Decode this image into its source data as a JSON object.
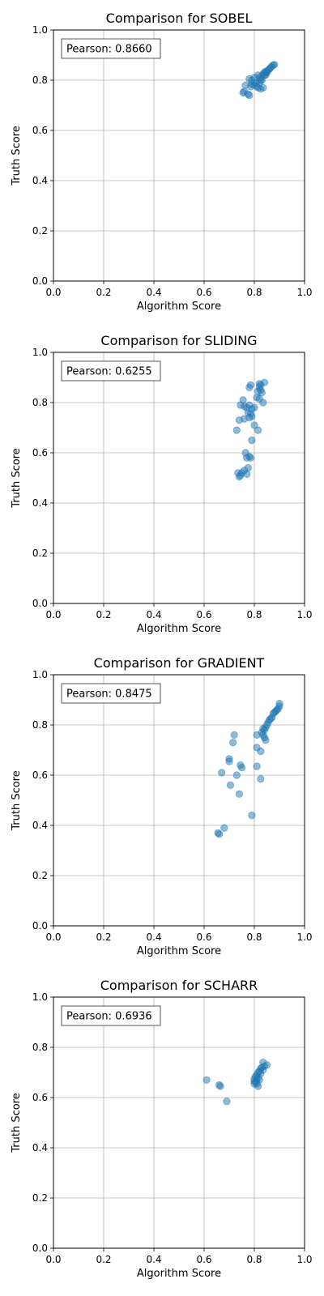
{
  "chart_data": [
    {
      "type": "scatter",
      "title": "Comparison for SOBEL",
      "xlabel": "Algorithm Score",
      "ylabel": "Truth Score",
      "xlim": [
        0,
        1
      ],
      "ylim": [
        0,
        1
      ],
      "xticks": [
        "0.0",
        "0.2",
        "0.4",
        "0.6",
        "0.8",
        "1.0"
      ],
      "yticks": [
        "0.0",
        "0.2",
        "0.4",
        "0.6",
        "0.8",
        "1.0"
      ],
      "grid": true,
      "annotation": "Pearson: 0.8660",
      "annotation_position": "top-left",
      "marker_color": "#1f77b4",
      "points": [
        [
          0.76,
          0.755
        ],
        [
          0.755,
          0.75
        ],
        [
          0.775,
          0.745
        ],
        [
          0.78,
          0.74
        ],
        [
          0.765,
          0.78
        ],
        [
          0.785,
          0.775
        ],
        [
          0.79,
          0.785
        ],
        [
          0.8,
          0.78
        ],
        [
          0.81,
          0.775
        ],
        [
          0.805,
          0.79
        ],
        [
          0.78,
          0.805
        ],
        [
          0.79,
          0.8
        ],
        [
          0.8,
          0.81
        ],
        [
          0.815,
          0.82
        ],
        [
          0.82,
          0.81
        ],
        [
          0.825,
          0.8
        ],
        [
          0.83,
          0.815
        ],
        [
          0.835,
          0.825
        ],
        [
          0.84,
          0.83
        ],
        [
          0.845,
          0.82
        ],
        [
          0.85,
          0.835
        ],
        [
          0.855,
          0.84
        ],
        [
          0.86,
          0.845
        ],
        [
          0.865,
          0.85
        ],
        [
          0.87,
          0.855
        ],
        [
          0.875,
          0.86
        ],
        [
          0.88,
          0.862
        ],
        [
          0.85,
          0.83
        ],
        [
          0.845,
          0.835
        ],
        [
          0.84,
          0.82
        ],
        [
          0.835,
          0.77
        ],
        [
          0.825,
          0.765
        ],
        [
          0.815,
          0.77
        ],
        [
          0.82,
          0.79
        ],
        [
          0.83,
          0.8
        ]
      ]
    },
    {
      "type": "scatter",
      "title": "Comparison for SLIDING",
      "xlabel": "Algorithm Score",
      "ylabel": "Truth Score",
      "xlim": [
        0,
        1
      ],
      "ylim": [
        0,
        1
      ],
      "xticks": [
        "0.0",
        "0.2",
        "0.4",
        "0.6",
        "0.8",
        "1.0"
      ],
      "yticks": [
        "0.0",
        "0.2",
        "0.4",
        "0.6",
        "0.8",
        "1.0"
      ],
      "grid": true,
      "annotation": "Pearson: 0.6255",
      "annotation_position": "top-left",
      "marker_color": "#1f77b4",
      "points": [
        [
          0.78,
          0.86
        ],
        [
          0.785,
          0.87
        ],
        [
          0.82,
          0.875
        ],
        [
          0.825,
          0.87
        ],
        [
          0.84,
          0.88
        ],
        [
          0.82,
          0.86
        ],
        [
          0.825,
          0.85
        ],
        [
          0.815,
          0.845
        ],
        [
          0.83,
          0.84
        ],
        [
          0.81,
          0.82
        ],
        [
          0.82,
          0.815
        ],
        [
          0.835,
          0.8
        ],
        [
          0.755,
          0.81
        ],
        [
          0.745,
          0.79
        ],
        [
          0.76,
          0.785
        ],
        [
          0.77,
          0.78
        ],
        [
          0.78,
          0.79
        ],
        [
          0.79,
          0.775
        ],
        [
          0.8,
          0.78
        ],
        [
          0.775,
          0.76
        ],
        [
          0.785,
          0.755
        ],
        [
          0.79,
          0.745
        ],
        [
          0.78,
          0.74
        ],
        [
          0.76,
          0.735
        ],
        [
          0.74,
          0.73
        ],
        [
          0.8,
          0.71
        ],
        [
          0.73,
          0.69
        ],
        [
          0.815,
          0.69
        ],
        [
          0.79,
          0.65
        ],
        [
          0.765,
          0.6
        ],
        [
          0.77,
          0.58
        ],
        [
          0.78,
          0.585
        ],
        [
          0.785,
          0.58
        ],
        [
          0.775,
          0.54
        ],
        [
          0.76,
          0.53
        ],
        [
          0.75,
          0.52
        ],
        [
          0.735,
          0.52
        ],
        [
          0.74,
          0.505
        ],
        [
          0.745,
          0.51
        ],
        [
          0.77,
          0.515
        ]
      ]
    },
    {
      "type": "scatter",
      "title": "Comparison for GRADIENT",
      "xlabel": "Algorithm Score",
      "ylabel": "Truth Score",
      "xlim": [
        0,
        1
      ],
      "ylim": [
        0,
        1
      ],
      "xticks": [
        "0.0",
        "0.2",
        "0.4",
        "0.6",
        "0.8",
        "1.0"
      ],
      "yticks": [
        "0.0",
        "0.2",
        "0.4",
        "0.6",
        "0.8",
        "1.0"
      ],
      "grid": true,
      "annotation": "Pearson: 0.8475",
      "annotation_position": "top-left",
      "marker_color": "#1f77b4",
      "points": [
        [
          0.9,
          0.885
        ],
        [
          0.9,
          0.875
        ],
        [
          0.895,
          0.865
        ],
        [
          0.89,
          0.86
        ],
        [
          0.885,
          0.855
        ],
        [
          0.88,
          0.85
        ],
        [
          0.875,
          0.845
        ],
        [
          0.87,
          0.83
        ],
        [
          0.865,
          0.825
        ],
        [
          0.86,
          0.82
        ],
        [
          0.855,
          0.81
        ],
        [
          0.85,
          0.8
        ],
        [
          0.845,
          0.79
        ],
        [
          0.84,
          0.78
        ],
        [
          0.835,
          0.785
        ],
        [
          0.83,
          0.77
        ],
        [
          0.835,
          0.76
        ],
        [
          0.84,
          0.75
        ],
        [
          0.845,
          0.74
        ],
        [
          0.81,
          0.76
        ],
        [
          0.72,
          0.76
        ],
        [
          0.715,
          0.73
        ],
        [
          0.81,
          0.71
        ],
        [
          0.825,
          0.695
        ],
        [
          0.7,
          0.665
        ],
        [
          0.7,
          0.655
        ],
        [
          0.745,
          0.64
        ],
        [
          0.75,
          0.63
        ],
        [
          0.81,
          0.635
        ],
        [
          0.73,
          0.6
        ],
        [
          0.67,
          0.61
        ],
        [
          0.825,
          0.585
        ],
        [
          0.705,
          0.56
        ],
        [
          0.74,
          0.525
        ],
        [
          0.79,
          0.44
        ],
        [
          0.68,
          0.39
        ],
        [
          0.655,
          0.37
        ],
        [
          0.66,
          0.365
        ]
      ]
    },
    {
      "type": "scatter",
      "title": "Comparison for SCHARR",
      "xlabel": "Algorithm Score",
      "ylabel": "Truth Score",
      "xlim": [
        0,
        1
      ],
      "ylim": [
        0,
        1
      ],
      "xticks": [
        "0.0",
        "0.2",
        "0.4",
        "0.6",
        "0.8",
        "1.0"
      ],
      "yticks": [
        "0.0",
        "0.2",
        "0.4",
        "0.6",
        "0.8",
        "1.0"
      ],
      "grid": true,
      "annotation": "Pearson: 0.6936",
      "annotation_position": "top-left",
      "marker_color": "#1f77b4",
      "points": [
        [
          0.835,
          0.74
        ],
        [
          0.85,
          0.73
        ],
        [
          0.84,
          0.725
        ],
        [
          0.83,
          0.72
        ],
        [
          0.825,
          0.715
        ],
        [
          0.835,
          0.71
        ],
        [
          0.82,
          0.705
        ],
        [
          0.815,
          0.7
        ],
        [
          0.825,
          0.695
        ],
        [
          0.81,
          0.69
        ],
        [
          0.805,
          0.685
        ],
        [
          0.815,
          0.68
        ],
        [
          0.8,
          0.675
        ],
        [
          0.81,
          0.67
        ],
        [
          0.8,
          0.665
        ],
        [
          0.82,
          0.67
        ],
        [
          0.805,
          0.66
        ],
        [
          0.81,
          0.655
        ],
        [
          0.8,
          0.655
        ],
        [
          0.815,
          0.645
        ],
        [
          0.61,
          0.67
        ],
        [
          0.66,
          0.65
        ],
        [
          0.665,
          0.645
        ],
        [
          0.69,
          0.585
        ]
      ]
    }
  ]
}
